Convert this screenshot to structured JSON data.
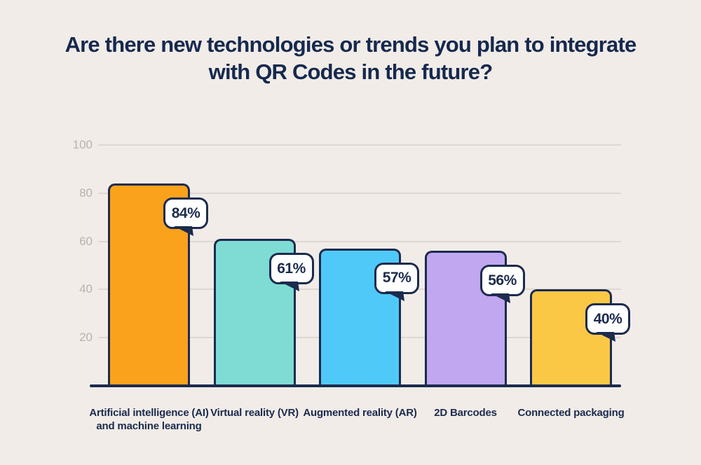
{
  "title": {
    "line1": "Are there new technologies or trends you plan to integrate",
    "line2": "with QR Codes in the future?"
  },
  "chart_data": {
    "type": "bar",
    "title": "Are there new technologies or trends you plan to integrate with QR Codes in the future?",
    "categories": [
      "Artificial intelligence (AI)\nand machine learning",
      "Virtual reality (VR)",
      "Augmented reality (AR)",
      "2D Barcodes",
      "Connected packaging"
    ],
    "values": [
      84,
      61,
      57,
      56,
      40
    ],
    "value_labels": [
      "84%",
      "61%",
      "57%",
      "56%",
      "40%"
    ],
    "bar_colors": [
      "#faa21c",
      "#7edcd4",
      "#4fcaf8",
      "#c0a7f0",
      "#fbc845"
    ],
    "xlabel": "",
    "ylabel": "",
    "ylim": [
      0,
      100
    ],
    "yticks": [
      20,
      40,
      60,
      80,
      100
    ],
    "grid": true,
    "legend": "none"
  },
  "colors": {
    "background": "#f1ece8",
    "title_text": "#16294e",
    "bar_border": "#1c2b4e",
    "gridline": "#ddd8d2",
    "axis_label": "#b9b2ac",
    "badge_background": "#ffffff",
    "badge_text": "#1c2b4e",
    "baseline": "#1c2b4e"
  }
}
